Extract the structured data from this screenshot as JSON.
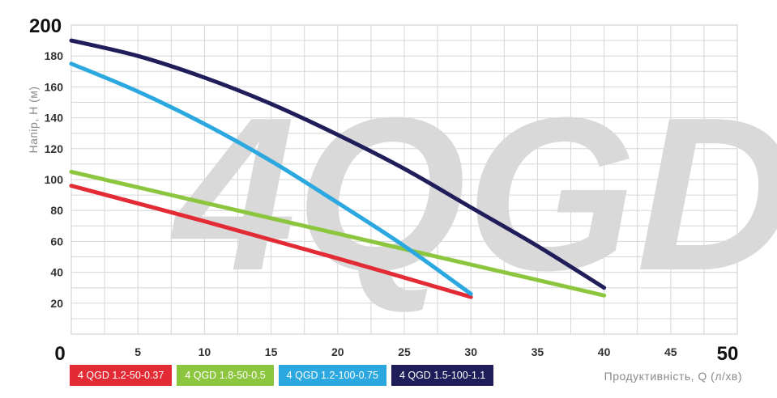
{
  "chart_data": {
    "type": "line",
    "watermark": "4QGD",
    "ylabel": "Напір, Н (м)",
    "xlabel": "Продуктивність, Q (л/хв)",
    "xlim": [
      0,
      50
    ],
    "ylim": [
      0,
      200
    ],
    "x_ticks": [
      "0",
      "5",
      "10",
      "15",
      "20",
      "25",
      "30",
      "35",
      "40",
      "45",
      "50"
    ],
    "y_ticks": [
      "0",
      "20",
      "40",
      "60",
      "80",
      "100",
      "120",
      "140",
      "160",
      "180",
      "200"
    ],
    "grid": true,
    "legend_position": "bottom-left",
    "series": [
      {
        "name": "4 QGD 1.2-50-0.37",
        "color": "#e32b35",
        "x": [
          0,
          10,
          20,
          30
        ],
        "y": [
          96,
          73,
          49,
          24
        ]
      },
      {
        "name": "4 QGD 1.8-50-0.5",
        "color": "#8cc63f",
        "x": [
          0,
          10,
          20,
          30,
          40
        ],
        "y": [
          105,
          85,
          65,
          45,
          25
        ]
      },
      {
        "name": "4 QGD 1.2-100-0.75",
        "color": "#2ba8e0",
        "x": [
          0,
          5,
          10,
          15,
          20,
          25,
          30
        ],
        "y": [
          175,
          157,
          136,
          112,
          85,
          57,
          26
        ]
      },
      {
        "name": "4 QGD 1.5-100-1.1",
        "color": "#1f1e5a",
        "x": [
          0,
          5,
          10,
          15,
          20,
          25,
          30,
          35,
          40
        ],
        "y": [
          190,
          180,
          166,
          149,
          129,
          107,
          82,
          57,
          30
        ]
      }
    ]
  }
}
